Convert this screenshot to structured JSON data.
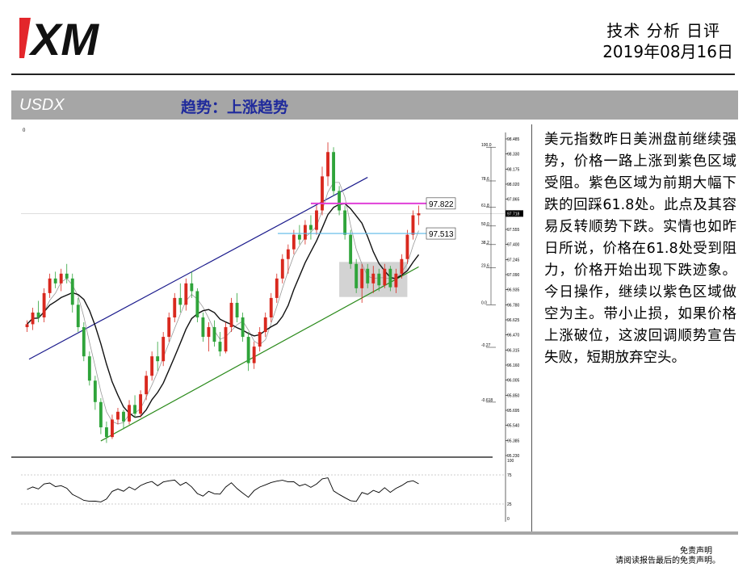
{
  "header": {
    "logo_text": "XM",
    "title": "技术 分析 日评",
    "date": "2019年08月16日"
  },
  "banner": {
    "symbol": "USDX",
    "trend": "趋势：上涨趋势"
  },
  "colors": {
    "logo_red": "#e3262b",
    "banner_bg": "#a6a6a6",
    "trend_text": "#1f2a9c",
    "up_candle": "#d9281e",
    "down_candle": "#2fa43a",
    "channel_upper": "#1a1a8c",
    "channel_lower": "#2a8a1a",
    "pink_line": "#e040d8",
    "blue_line": "#5ab8e8",
    "zone_fill": "#c8c8c8"
  },
  "chart_data": {
    "type": "candlestick",
    "symbol": "USDX",
    "price_ticks": [
      "98.485",
      "98.330",
      "98.175",
      "98.020",
      "97.865",
      "97.710",
      "97.555",
      "97.400",
      "97.245",
      "97.090",
      "96.935",
      "96.780",
      "96.625",
      "96.470",
      "96.315",
      "96.160",
      "96.005",
      "95.850",
      "95.695",
      "95.540",
      "95.385",
      "95.230"
    ],
    "current_price": "97.718",
    "horizontal_levels": [
      {
        "label": "97.822",
        "value": 97.822,
        "color": "pink"
      },
      {
        "label": "97.513",
        "value": 97.513,
        "color": "light-blue"
      }
    ],
    "fibonacci_levels": [
      "100.0",
      "78.6",
      "61.8",
      "50.0",
      "38.2",
      "23.6",
      "0.0",
      "-0.27",
      "-0.618"
    ],
    "oscillator": {
      "ticks": [
        "100",
        "75",
        "25",
        "0"
      ],
      "upper_band": 75,
      "lower_band": 25
    },
    "top_left_marker": "0",
    "ohlc": [
      [
        96.55,
        96.62,
        96.5,
        96.58
      ],
      [
        96.58,
        96.75,
        96.52,
        96.7
      ],
      [
        96.7,
        96.82,
        96.6,
        96.65
      ],
      [
        96.65,
        96.95,
        96.6,
        96.9
      ],
      [
        96.9,
        97.1,
        96.85,
        97.05
      ],
      [
        97.05,
        97.12,
        96.95,
        97.0
      ],
      [
        97.0,
        97.15,
        96.92,
        97.1
      ],
      [
        97.1,
        97.2,
        97.0,
        97.05
      ],
      [
        97.05,
        97.1,
        96.7,
        96.78
      ],
      [
        96.78,
        96.85,
        96.5,
        96.55
      ],
      [
        96.55,
        96.6,
        96.2,
        96.25
      ],
      [
        96.25,
        96.3,
        95.95,
        96.0
      ],
      [
        96.0,
        96.05,
        95.7,
        95.78
      ],
      [
        95.78,
        95.82,
        95.45,
        95.52
      ],
      [
        95.52,
        95.58,
        95.36,
        95.42
      ],
      [
        95.42,
        95.65,
        95.4,
        95.6
      ],
      [
        95.6,
        95.72,
        95.55,
        95.68
      ],
      [
        95.68,
        95.7,
        95.5,
        95.58
      ],
      [
        95.58,
        95.8,
        95.55,
        95.75
      ],
      [
        95.75,
        95.85,
        95.62,
        95.66
      ],
      [
        95.66,
        95.9,
        95.62,
        95.86
      ],
      [
        95.86,
        96.1,
        95.8,
        96.05
      ],
      [
        96.05,
        96.3,
        96.0,
        96.25
      ],
      [
        96.25,
        96.4,
        96.1,
        96.2
      ],
      [
        96.2,
        96.5,
        96.15,
        96.45
      ],
      [
        96.45,
        96.7,
        96.4,
        96.65
      ],
      [
        96.65,
        96.9,
        96.6,
        96.85
      ],
      [
        96.85,
        97.0,
        96.7,
        96.78
      ],
      [
        96.78,
        97.05,
        96.72,
        97.0
      ],
      [
        97.0,
        97.12,
        96.85,
        96.92
      ],
      [
        96.92,
        96.95,
        96.6,
        96.65
      ],
      [
        96.65,
        96.7,
        96.4,
        96.45
      ],
      [
        96.45,
        96.6,
        96.3,
        96.55
      ],
      [
        96.55,
        96.62,
        96.35,
        96.4
      ],
      [
        96.4,
        96.5,
        96.25,
        96.3
      ],
      [
        96.3,
        96.6,
        96.28,
        96.55
      ],
      [
        96.55,
        96.85,
        96.5,
        96.8
      ],
      [
        96.8,
        96.9,
        96.6,
        96.65
      ],
      [
        96.65,
        96.7,
        96.4,
        96.45
      ],
      [
        96.45,
        96.5,
        96.1,
        96.18
      ],
      [
        96.18,
        96.4,
        96.12,
        96.35
      ],
      [
        96.35,
        96.55,
        96.3,
        96.5
      ],
      [
        96.5,
        96.7,
        96.45,
        96.65
      ],
      [
        96.65,
        96.9,
        96.6,
        96.85
      ],
      [
        96.85,
        97.1,
        96.8,
        97.05
      ],
      [
        97.05,
        97.3,
        97.0,
        97.25
      ],
      [
        97.25,
        97.4,
        97.1,
        97.35
      ],
      [
        97.35,
        97.55,
        97.3,
        97.5
      ],
      [
        97.5,
        97.6,
        97.4,
        97.45
      ],
      [
        97.45,
        97.65,
        97.4,
        97.6
      ],
      [
        97.6,
        97.7,
        97.45,
        97.55
      ],
      [
        97.55,
        97.8,
        97.5,
        97.75
      ],
      [
        97.75,
        98.2,
        97.7,
        98.1
      ],
      [
        98.1,
        98.45,
        98.0,
        98.35
      ],
      [
        98.35,
        98.4,
        97.9,
        97.95
      ],
      [
        97.95,
        98.0,
        97.7,
        97.75
      ],
      [
        97.75,
        97.8,
        97.45,
        97.5
      ],
      [
        97.5,
        97.55,
        97.15,
        97.2
      ],
      [
        97.2,
        97.25,
        96.9,
        96.95
      ],
      [
        96.95,
        97.2,
        96.8,
        97.15
      ],
      [
        97.15,
        97.2,
        96.95,
        97.0
      ],
      [
        97.0,
        97.18,
        96.9,
        97.1
      ],
      [
        97.1,
        97.15,
        96.92,
        96.98
      ],
      [
        96.98,
        97.2,
        96.95,
        97.15
      ],
      [
        97.15,
        97.18,
        96.92,
        96.96
      ],
      [
        96.96,
        97.15,
        96.9,
        97.1
      ],
      [
        97.1,
        97.3,
        97.05,
        97.25
      ],
      [
        97.25,
        97.55,
        97.2,
        97.5
      ],
      [
        97.5,
        97.75,
        97.45,
        97.7
      ],
      [
        97.7,
        97.8,
        97.6,
        97.72
      ]
    ]
  },
  "commentary": "美元指数昨日美洲盘前继续强势，价格一路上涨到紫色区域受阻。紫色区域为前期大幅下跌的回踩61.8处。此点及其容易反转顺势下跌。实情也如昨日所说，价格在61.8处受到阻力，价格开始出现下跌迹象。今日操作，继续以紫色区域做空为主。带小止损，如果价格上涨破位，这波回调顺势宣告失败，短期放弃空头。",
  "footer": {
    "disclaimer_title": "免责声明",
    "disclaimer_text": "请阅读报告最后的免责声明。"
  }
}
